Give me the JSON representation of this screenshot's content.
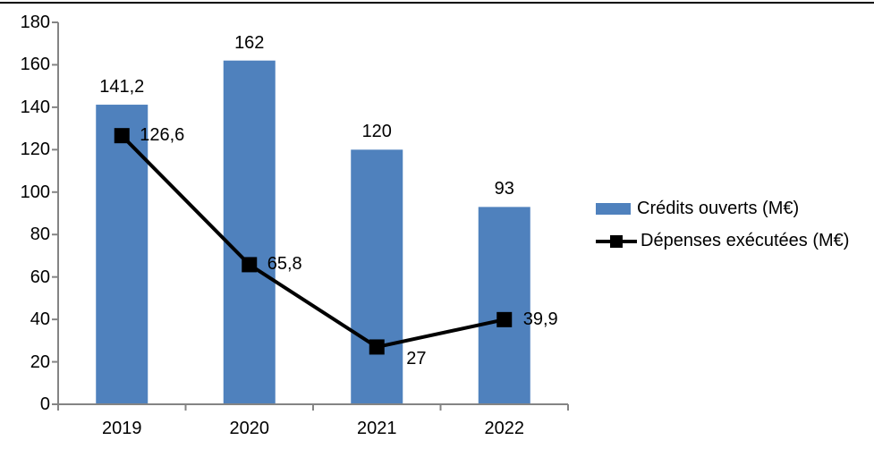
{
  "page": {
    "background": "#ffffff",
    "top_border_color": "#000000"
  },
  "chart_data": {
    "type": "bar+line",
    "title": "",
    "xlabel": "",
    "ylabel": "",
    "categories": [
      "2019",
      "2020",
      "2021",
      "2022"
    ],
    "series": [
      {
        "name": "Crédits ouverts (M€)",
        "chart": "bar",
        "color": "#4f81bd",
        "values": [
          141.2,
          162,
          120,
          93
        ],
        "value_labels": [
          "141,2",
          "162",
          "120",
          "93"
        ]
      },
      {
        "name": "Dépenses exécutées (M€)",
        "chart": "line",
        "color": "#000000",
        "marker": "square",
        "values": [
          126.6,
          65.8,
          27,
          39.9
        ],
        "value_labels": [
          "126,6",
          "65,8",
          "27",
          "39,9"
        ]
      }
    ],
    "ylim": [
      0,
      180
    ],
    "yticks": [
      0,
      20,
      40,
      60,
      80,
      100,
      120,
      140,
      160,
      180
    ],
    "grid": false,
    "legend_position": "right",
    "axis_color": "#848484",
    "label_color": "#000000"
  }
}
